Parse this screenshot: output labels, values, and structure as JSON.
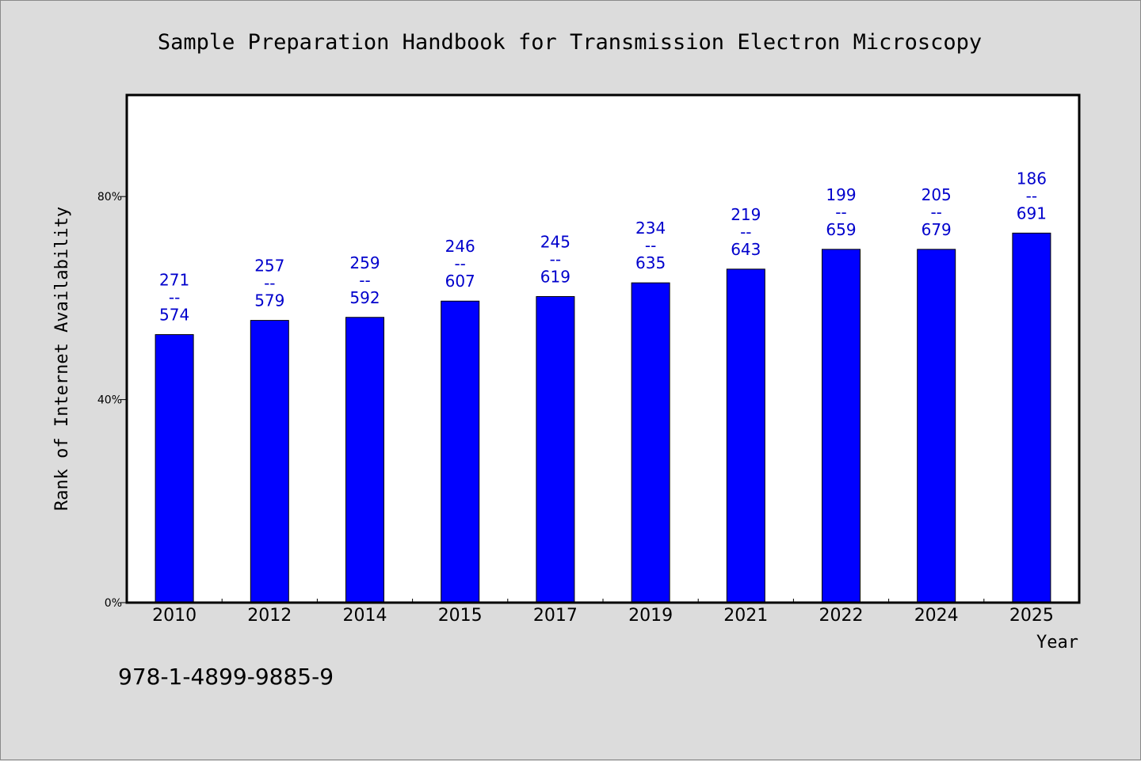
{
  "chart_data": {
    "type": "bar",
    "title": "Sample Preparation Handbook for Transmission Electron Microscopy",
    "xlabel": "Year",
    "ylabel": "Rank of Internet Availability",
    "ylim": [
      0,
      100
    ],
    "yticks": [
      {
        "value": 0,
        "label": "0%"
      },
      {
        "value": 40,
        "label": "40%"
      },
      {
        "value": 80,
        "label": "80%"
      }
    ],
    "categories": [
      "2010",
      "2012",
      "2014",
      "2015",
      "2017",
      "2019",
      "2021",
      "2022",
      "2024",
      "2025"
    ],
    "values": [
      52.8,
      55.6,
      56.2,
      59.4,
      60.3,
      63.0,
      65.7,
      69.6,
      69.6,
      72.8
    ],
    "bar_labels": [
      [
        "271",
        "--",
        "574"
      ],
      [
        "257",
        "--",
        "579"
      ],
      [
        "259",
        "--",
        "592"
      ],
      [
        "246",
        "--",
        "607"
      ],
      [
        "245",
        "--",
        "619"
      ],
      [
        "234",
        "--",
        "635"
      ],
      [
        "219",
        "--",
        "643"
      ],
      [
        "199",
        "--",
        "659"
      ],
      [
        "205",
        "--",
        "679"
      ],
      [
        "186",
        "--",
        "691"
      ]
    ],
    "bar_color": "#0000ff",
    "label_color": "#0000cc",
    "grid": false
  },
  "footer": {
    "isbn": "978-1-4899-9885-9"
  }
}
